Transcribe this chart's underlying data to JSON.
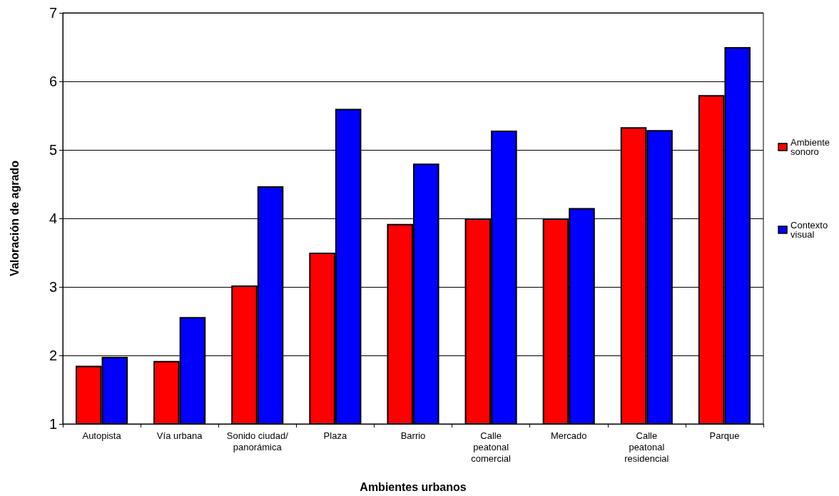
{
  "chart_data": {
    "type": "bar",
    "xlabel": "Ambientes urbanos",
    "ylabel": "Valoración de agrado",
    "categories": [
      "Autopista",
      "Vía urbana",
      "Sonido ciudad/\npanorámica",
      "Plaza",
      "Barrio",
      "Calle\npeatonal\ncomercial",
      "Mercado",
      "Calle\npeatonal\nresidencial",
      "Parque"
    ],
    "series": [
      {
        "name": "Ambiente\nsonoro",
        "color": "#ff0000",
        "values": [
          1.85,
          1.92,
          3.02,
          3.5,
          3.92,
          4.0,
          4.0,
          5.33,
          5.8
        ]
      },
      {
        "name": "Contexto\nvisual",
        "color": "#0000ff",
        "values": [
          1.98,
          2.56,
          4.47,
          5.6,
          4.8,
          5.28,
          4.15,
          5.29,
          6.5
        ]
      }
    ],
    "ylim": [
      1,
      7
    ],
    "yticks": [
      1,
      2,
      3,
      4,
      5,
      6,
      7
    ],
    "grid": "y",
    "legend": "right"
  }
}
